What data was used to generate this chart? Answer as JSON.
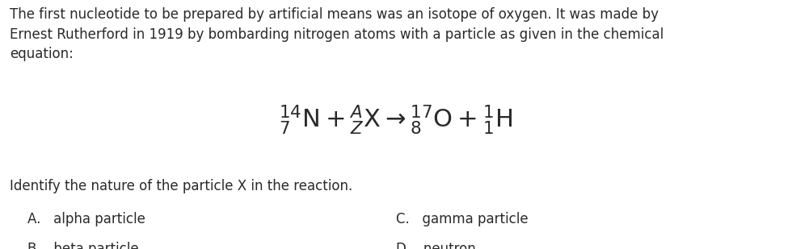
{
  "background_color": "#ffffff",
  "text_color": "#2a2a2a",
  "paragraph": "The first nucleotide to be prepared by artificial means was an isotope of oxygen. It was made by\nErnest Rutherford in 1919 by bombarding nitrogen atoms with a particle as given in the chemical\nequation:",
  "identify_text": "Identify the nature of the particle X in the reaction.",
  "choices": {
    "A": "alpha particle",
    "B": "beta particle",
    "C": "gamma particle",
    "D": "neutron"
  },
  "paragraph_fontsize": 12.0,
  "equation_fontsize": 22,
  "identify_fontsize": 12.0,
  "choices_fontsize": 12.0
}
